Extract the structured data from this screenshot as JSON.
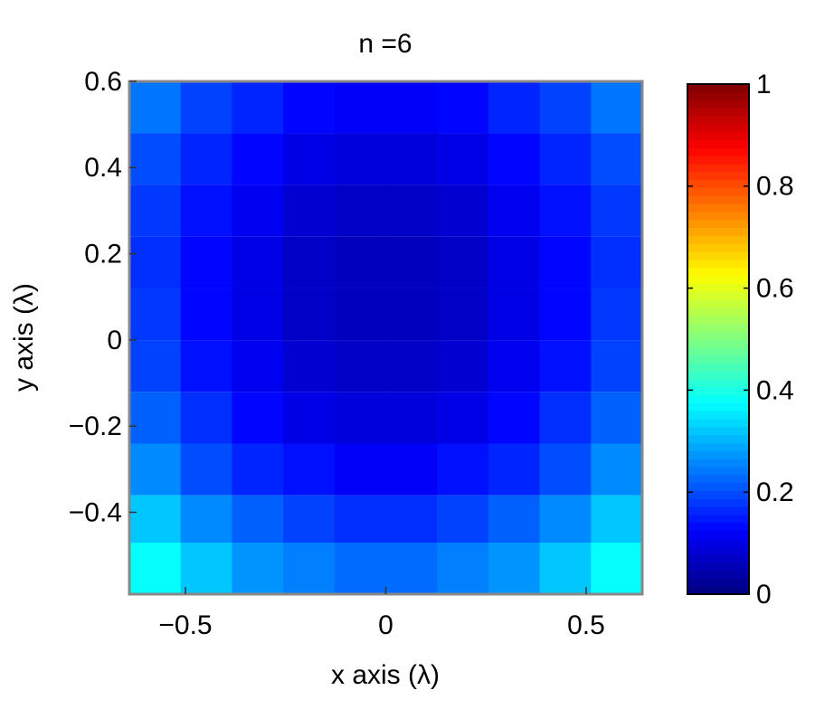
{
  "chart_data": {
    "type": "heatmap",
    "title": "n =6",
    "x_label": "x axis (λ)",
    "y_label": "y axis (λ)",
    "colormap": "jet",
    "x": [
      -0.576,
      -0.448,
      -0.32,
      -0.192,
      -0.064,
      0.064,
      0.192,
      0.32,
      0.448,
      0.576
    ],
    "y": [
      0.54,
      0.42,
      0.3,
      0.18,
      0.06,
      -0.06,
      -0.18,
      -0.3,
      -0.42,
      -0.53
    ],
    "z": [
      [
        0.24,
        0.19,
        0.16,
        0.13,
        0.12,
        0.12,
        0.13,
        0.16,
        0.19,
        0.24
      ],
      [
        0.2,
        0.16,
        0.13,
        0.1,
        0.09,
        0.09,
        0.1,
        0.13,
        0.16,
        0.2
      ],
      [
        0.18,
        0.14,
        0.11,
        0.08,
        0.07,
        0.07,
        0.08,
        0.11,
        0.14,
        0.18
      ],
      [
        0.17,
        0.13,
        0.1,
        0.07,
        0.06,
        0.06,
        0.07,
        0.1,
        0.13,
        0.17
      ],
      [
        0.18,
        0.13,
        0.1,
        0.07,
        0.06,
        0.06,
        0.07,
        0.1,
        0.13,
        0.18
      ],
      [
        0.19,
        0.14,
        0.11,
        0.08,
        0.07,
        0.07,
        0.08,
        0.11,
        0.14,
        0.19
      ],
      [
        0.22,
        0.17,
        0.13,
        0.1,
        0.09,
        0.09,
        0.1,
        0.13,
        0.17,
        0.22
      ],
      [
        0.26,
        0.2,
        0.16,
        0.14,
        0.12,
        0.12,
        0.14,
        0.16,
        0.2,
        0.26
      ],
      [
        0.32,
        0.26,
        0.22,
        0.19,
        0.17,
        0.17,
        0.19,
        0.22,
        0.26,
        0.32
      ],
      [
        0.38,
        0.32,
        0.27,
        0.25,
        0.23,
        0.23,
        0.25,
        0.27,
        0.32,
        0.38
      ]
    ],
    "xlim": [
      -0.64,
      0.64
    ],
    "ylim": [
      -0.59,
      0.6
    ],
    "xticks": [
      {
        "value": -0.5,
        "label": "−0.5"
      },
      0,
      0.5
    ],
    "yticks": [
      0.6,
      0.4,
      0.2,
      0,
      {
        "value": -0.2,
        "label": "−0.2"
      },
      {
        "value": -0.4,
        "label": "−0.4"
      }
    ],
    "clim": [
      0,
      1
    ],
    "cticks": [
      0,
      0.2,
      0.4,
      0.6,
      0.8,
      1
    ]
  }
}
